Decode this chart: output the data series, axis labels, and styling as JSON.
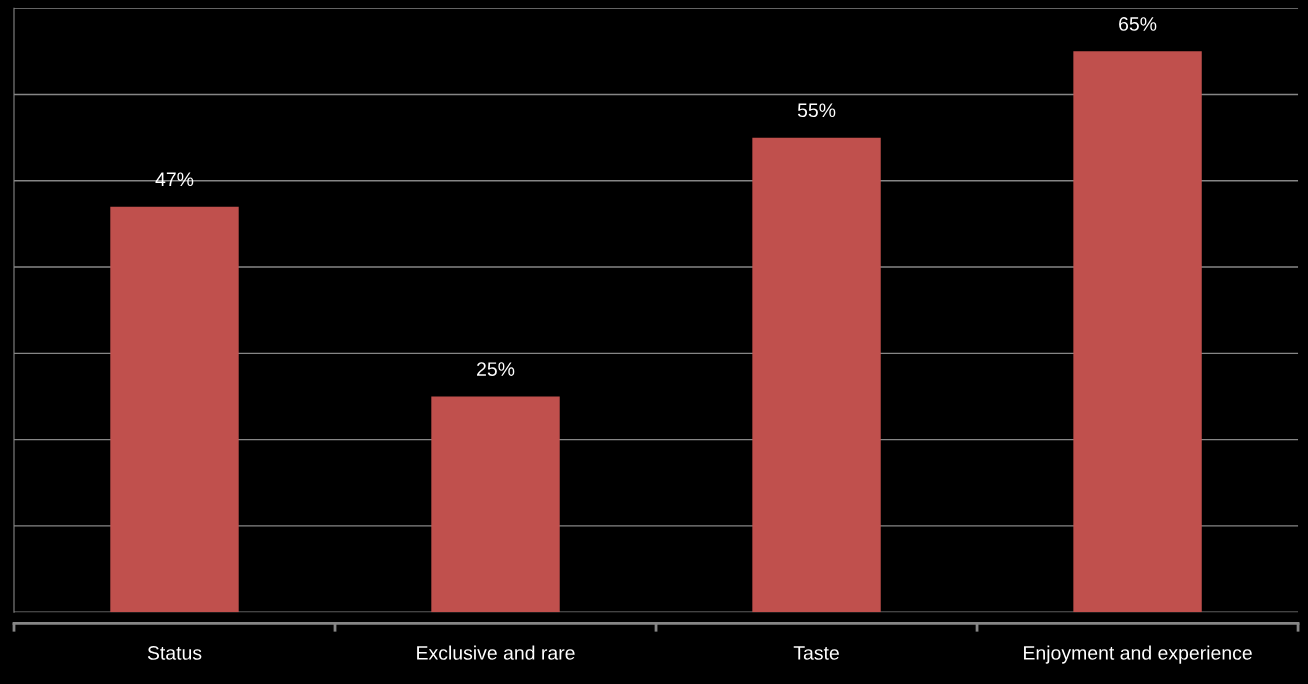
{
  "chart_data": {
    "type": "bar",
    "categories": [
      "Status",
      "Exclusive and rare",
      "Taste",
      "Enjoyment and experience"
    ],
    "values": [
      47,
      25,
      55,
      65
    ],
    "value_labels": [
      "47%",
      "25%",
      "55%",
      "65%"
    ],
    "color": "#c0504d",
    "ylim": [
      0,
      70
    ],
    "yticks": [
      0,
      10,
      20,
      30,
      40,
      50,
      60,
      70
    ],
    "grid": "y",
    "tick_labels": "x"
  }
}
